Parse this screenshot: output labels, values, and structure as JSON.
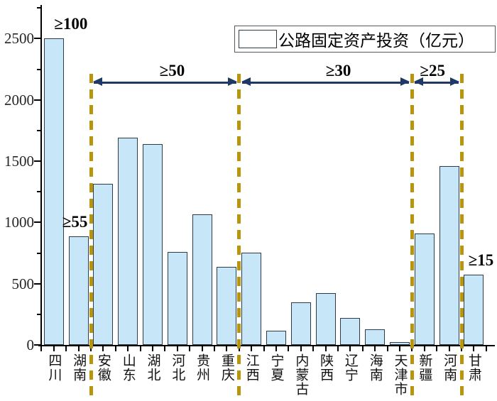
{
  "chart_data": {
    "type": "bar",
    "title": "",
    "legend": "公路固定资产投资（亿元）",
    "legend_position": "top-right",
    "grid": false,
    "categories": [
      "四川",
      "湖南",
      "安徽",
      "山东",
      "湖北",
      "河北",
      "贵州",
      "重庆",
      "江西",
      "宁夏",
      "内蒙古",
      "陕西",
      "辽宁",
      "海南",
      "天津市",
      "新疆",
      "河南",
      "甘肃"
    ],
    "values": [
      2500,
      885,
      1315,
      1690,
      1640,
      760,
      1065,
      635,
      755,
      115,
      350,
      425,
      220,
      125,
      25,
      910,
      1460,
      575
    ],
    "xlabel": "",
    "ylabel": "",
    "ylim": [
      0,
      2500
    ],
    "yticks": [
      0,
      500,
      1000,
      1500,
      2000,
      2500
    ],
    "yticks_minor": [
      250,
      750,
      1250,
      1750,
      2250,
      2750
    ],
    "bar_annotations": [
      {
        "index": 0,
        "text": "≥100",
        "dx": 24
      },
      {
        "index": 1,
        "text": "≥55",
        "dx": -5
      },
      {
        "index": 17,
        "text": "≥15",
        "dx": 10
      }
    ],
    "separators_after_index": [
      1,
      7,
      14,
      16
    ],
    "range_annotations": [
      {
        "from_separator": 0,
        "to_separator": 1,
        "text": "≥50",
        "dx": 10
      },
      {
        "from_separator": 1,
        "to_separator": 2,
        "text": "≥30",
        "dx": 18
      },
      {
        "from_separator": 2,
        "to_separator": 3,
        "text": "≥25",
        "dx": -6
      }
    ],
    "colors": {
      "bar_fill": "#C7E6F8",
      "bar_border": "#2E3C49",
      "separator": "#B8950D",
      "arrow": "#1F3864",
      "axis": "#000000",
      "text": "#1A1A1A"
    }
  }
}
